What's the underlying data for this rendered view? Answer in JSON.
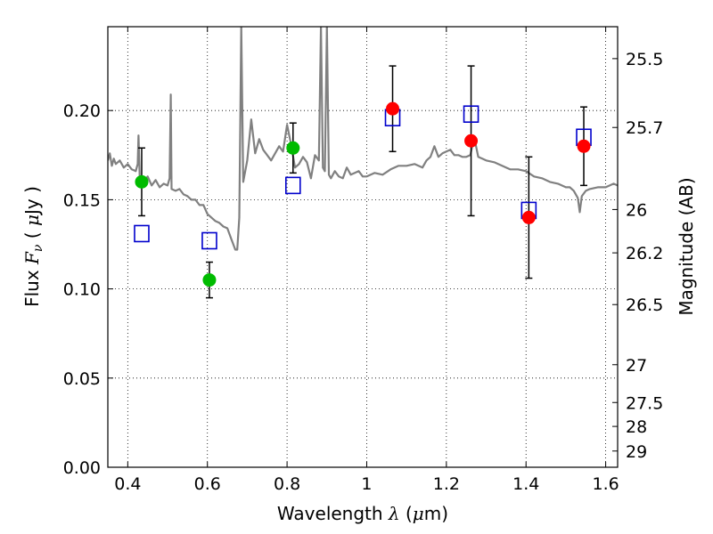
{
  "chart_data": {
    "type": "scatter",
    "xlabel": "Wavelength  λ (μm)",
    "ylabel": "Flux  Fν  ( μJy )",
    "y2label": "Magnitude (AB)",
    "xlim": [
      0.35,
      1.63
    ],
    "ylim": [
      0.0,
      0.247
    ],
    "grid": true,
    "x_ticks": [
      0.4,
      0.6,
      0.8,
      1.0,
      1.2,
      1.4,
      1.6
    ],
    "x_tick_labels": [
      "0.4",
      "0.6",
      "0.8",
      "1",
      "1.2",
      "1.4",
      "1.6"
    ],
    "y_ticks": [
      0.0,
      0.05,
      0.1,
      0.15,
      0.2
    ],
    "y_tick_labels": [
      "0.00",
      "0.05",
      "0.10",
      "0.15",
      "0.20"
    ],
    "mag_ticks": [
      {
        "label": "25.5",
        "flux": 0.2291
      },
      {
        "label": "25.7",
        "flux": 0.1905
      },
      {
        "label": "26",
        "flux": 0.1445
      },
      {
        "label": "26.2",
        "flux": 0.1202
      },
      {
        "label": "26.5",
        "flux": 0.0912
      },
      {
        "label": "27",
        "flux": 0.0575
      },
      {
        "label": "27.5",
        "flux": 0.0363
      },
      {
        "label": "28",
        "flux": 0.0229
      },
      {
        "label": "29",
        "flux": 0.0091
      }
    ],
    "series": [
      {
        "name": "model-spectrum",
        "kind": "line",
        "color": "#808080",
        "x": [
          0.35,
          0.355,
          0.36,
          0.365,
          0.37,
          0.38,
          0.39,
          0.4,
          0.41,
          0.42,
          0.425,
          0.427,
          0.43,
          0.44,
          0.45,
          0.46,
          0.47,
          0.48,
          0.49,
          0.5,
          0.505,
          0.508,
          0.51,
          0.52,
          0.53,
          0.54,
          0.55,
          0.56,
          0.57,
          0.58,
          0.59,
          0.6,
          0.61,
          0.62,
          0.63,
          0.64,
          0.65,
          0.66,
          0.67,
          0.675,
          0.68,
          0.685,
          0.69,
          0.7,
          0.71,
          0.72,
          0.73,
          0.74,
          0.75,
          0.76,
          0.77,
          0.78,
          0.79,
          0.8,
          0.81,
          0.82,
          0.83,
          0.84,
          0.85,
          0.86,
          0.87,
          0.88,
          0.885,
          0.89,
          0.895,
          0.9,
          0.905,
          0.91,
          0.92,
          0.93,
          0.94,
          0.95,
          0.96,
          0.97,
          0.98,
          0.99,
          1.0,
          1.02,
          1.04,
          1.06,
          1.08,
          1.1,
          1.12,
          1.14,
          1.15,
          1.16,
          1.17,
          1.18,
          1.19,
          1.2,
          1.21,
          1.22,
          1.23,
          1.24,
          1.25,
          1.26,
          1.27,
          1.28,
          1.29,
          1.3,
          1.32,
          1.34,
          1.36,
          1.38,
          1.4,
          1.42,
          1.44,
          1.46,
          1.48,
          1.5,
          1.51,
          1.52,
          1.53,
          1.535,
          1.54,
          1.55,
          1.56,
          1.58,
          1.6,
          1.62,
          1.63
        ],
        "y": [
          0.172,
          0.176,
          0.169,
          0.173,
          0.17,
          0.172,
          0.168,
          0.17,
          0.167,
          0.166,
          0.17,
          0.186,
          0.162,
          0.16,
          0.163,
          0.158,
          0.161,
          0.157,
          0.159,
          0.158,
          0.162,
          0.209,
          0.156,
          0.155,
          0.156,
          0.153,
          0.152,
          0.15,
          0.15,
          0.147,
          0.147,
          0.142,
          0.14,
          0.138,
          0.137,
          0.135,
          0.134,
          0.128,
          0.122,
          0.122,
          0.14,
          0.247,
          0.16,
          0.172,
          0.195,
          0.176,
          0.184,
          0.178,
          0.175,
          0.172,
          0.176,
          0.18,
          0.177,
          0.192,
          0.181,
          0.168,
          0.17,
          0.174,
          0.171,
          0.162,
          0.175,
          0.172,
          0.247,
          0.168,
          0.166,
          0.247,
          0.164,
          0.162,
          0.166,
          0.163,
          0.162,
          0.168,
          0.164,
          0.165,
          0.166,
          0.163,
          0.163,
          0.165,
          0.164,
          0.167,
          0.169,
          0.169,
          0.17,
          0.168,
          0.172,
          0.174,
          0.18,
          0.174,
          0.176,
          0.177,
          0.178,
          0.175,
          0.175,
          0.174,
          0.174,
          0.175,
          0.185,
          0.174,
          0.173,
          0.172,
          0.171,
          0.169,
          0.167,
          0.167,
          0.166,
          0.163,
          0.162,
          0.16,
          0.159,
          0.157,
          0.157,
          0.155,
          0.151,
          0.143,
          0.152,
          0.155,
          0.156,
          0.157,
          0.157,
          0.159,
          0.158
        ]
      },
      {
        "name": "model-photometry",
        "kind": "marker",
        "marker": "square",
        "color": "#0000cc",
        "x": [
          0.435,
          0.605,
          0.815,
          1.065,
          1.262,
          1.407,
          1.545
        ],
        "y": [
          0.131,
          0.127,
          0.158,
          0.196,
          0.198,
          0.144,
          0.185
        ]
      },
      {
        "name": "observed-green",
        "kind": "marker",
        "marker": "circle",
        "color": "#00bb00",
        "x": [
          0.435,
          0.605,
          0.815
        ],
        "y": [
          0.16,
          0.105,
          0.179
        ],
        "yerr": [
          0.019,
          0.01,
          0.014
        ]
      },
      {
        "name": "observed-red",
        "kind": "marker",
        "marker": "circle",
        "color": "#ff0000",
        "x": [
          1.065,
          1.262,
          1.407,
          1.545
        ],
        "y": [
          0.201,
          0.183,
          0.14,
          0.18
        ],
        "yerr": [
          0.024,
          0.042,
          0.034,
          0.022
        ]
      }
    ]
  }
}
